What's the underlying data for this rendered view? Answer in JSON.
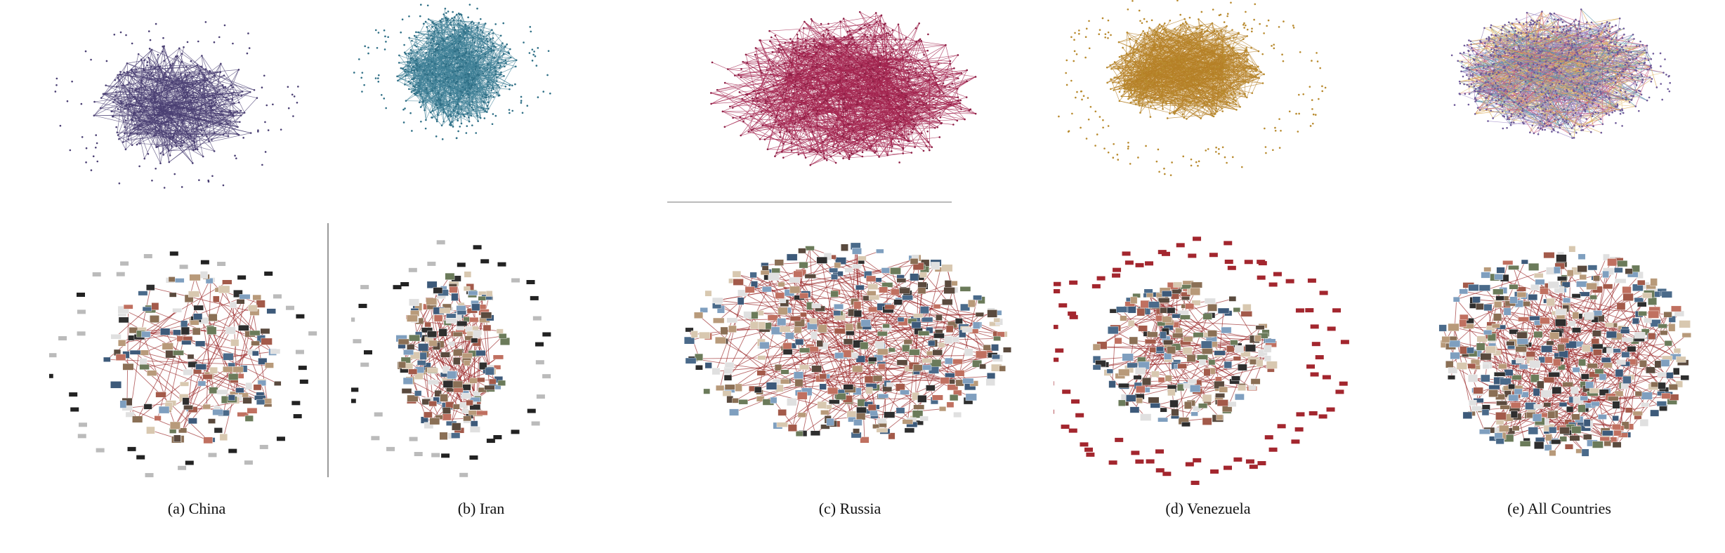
{
  "figure": {
    "panels": [
      {
        "id": "china",
        "caption": "(a) China",
        "edge_color": "#4a3f73",
        "node_color": "#4a3f73",
        "multicolor": false
      },
      {
        "id": "iran",
        "caption": "(b) Iran",
        "edge_color": "#3d7f95",
        "node_color": "#2f6f86",
        "multicolor": false
      },
      {
        "id": "russia",
        "caption": "(c) Russia",
        "edge_color": "#a3244f",
        "node_color": "#8d1f45",
        "multicolor": false
      },
      {
        "id": "venezuela",
        "caption": "(d) Venezuela",
        "edge_color": "#b58027",
        "node_color": "#b88a2e",
        "multicolor": false
      },
      {
        "id": "all",
        "caption": "(e) All Countries",
        "edge_color": "#8e7ab3",
        "node_color": "#6e5a99",
        "multicolor": true,
        "palette": [
          "#8e7ab3",
          "#d9a54a",
          "#c44d78",
          "#4f8fa5",
          "#a38fc9",
          "#e3c27a"
        ]
      }
    ],
    "thumbnail_edge_color": "#9b2b2b"
  }
}
